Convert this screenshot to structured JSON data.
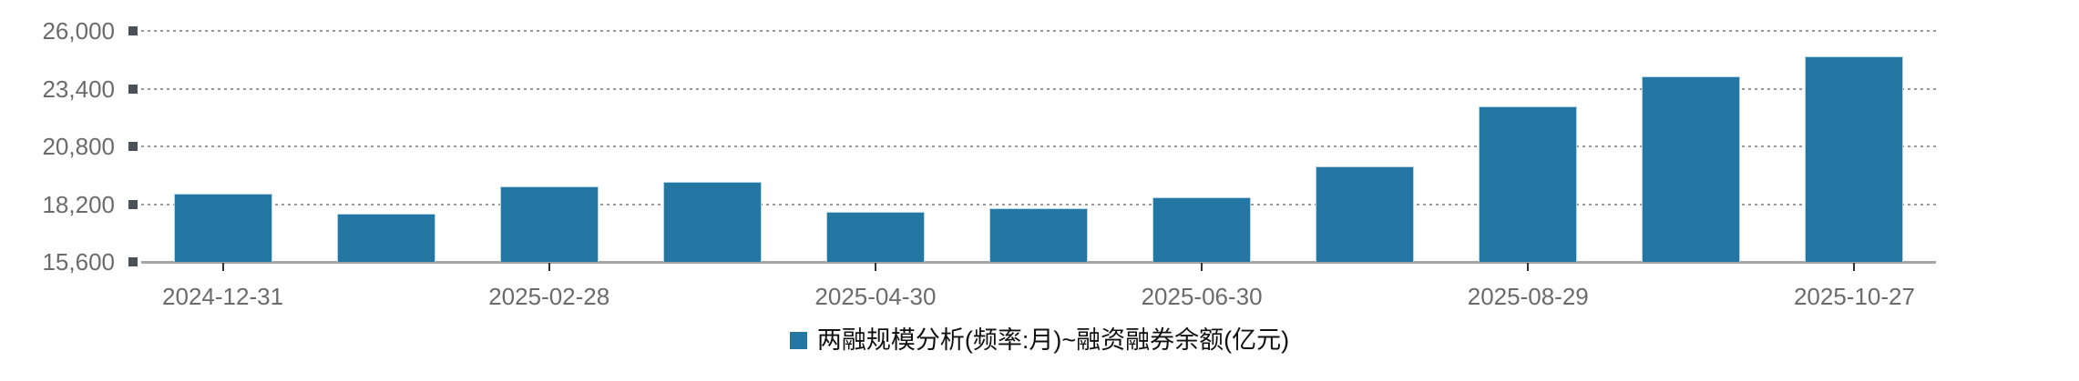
{
  "chart_data": {
    "type": "bar",
    "series_name": "两融规模分析(频率:月)~融资融券余额(亿元)",
    "values": [
      18680,
      17760,
      18990,
      19210,
      17870,
      18020,
      18520,
      19890,
      22600,
      23970,
      24840
    ],
    "x_tick_labels": [
      "2024-12-31",
      "2025-02-28",
      "2025-04-30",
      "2025-06-30",
      "2025-08-29",
      "2025-10-27"
    ],
    "x_label_every": 2,
    "y_tick_labels": [
      "26,000",
      "23,400",
      "20,800",
      "18,200",
      "15,600"
    ],
    "y_tick_values": [
      26000,
      23400,
      20800,
      18200,
      15600
    ],
    "ylim": [
      15600,
      26000
    ],
    "xlabel": "",
    "ylabel": "",
    "title": "",
    "grid": "horizontal-dotted",
    "legend_position": "bottom-center",
    "colors": {
      "bar_fill": "#2577a3",
      "bar_edge": "#b3d7e9",
      "axis_line": "#a6a6a6",
      "grid_dots": "#9a9a9a",
      "y_square_marker": "#4b5158",
      "x_tick_mark": "#333333",
      "axis_label_text": "#6b6b6b",
      "legend_text": "#111111"
    }
  }
}
